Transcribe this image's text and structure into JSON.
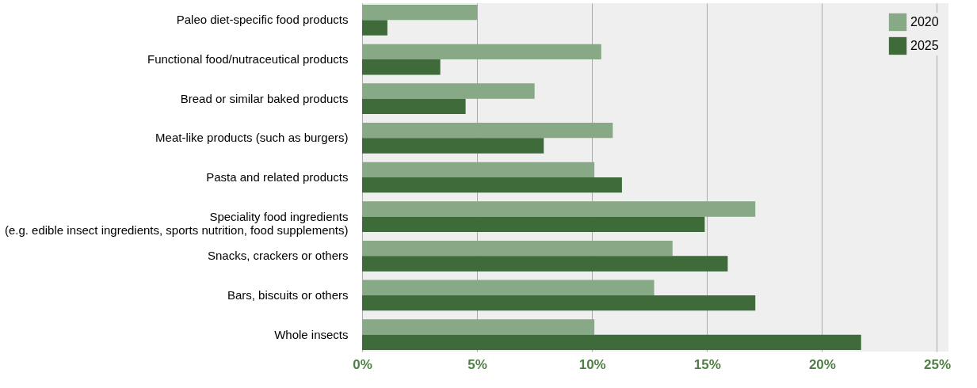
{
  "chart_data": {
    "type": "bar",
    "orientation": "horizontal",
    "categories": [
      "Paleo diet-specific food products",
      "Functional food/nutraceutical products",
      "Bread or similar baked products",
      "Meat-like products (such as burgers)",
      "Pasta and related products",
      "Speciality food ingredients\n(e.g. edible insect ingredients, sports nutrition, food supplements)",
      "Snacks, crackers or others",
      "Bars, biscuits or others",
      "Whole insects"
    ],
    "series": [
      {
        "name": "2020",
        "color": "#87a985",
        "values": [
          5.0,
          10.4,
          7.5,
          10.9,
          10.1,
          17.1,
          13.5,
          12.7,
          10.1
        ]
      },
      {
        "name": "2025",
        "color": "#3f6b3b",
        "values": [
          1.1,
          3.4,
          4.5,
          7.9,
          11.3,
          14.9,
          15.9,
          17.1,
          21.7
        ]
      }
    ],
    "xlim": [
      0,
      25.5
    ],
    "xticks": [
      {
        "value": 0,
        "label": "0%"
      },
      {
        "value": 5,
        "label": "5%"
      },
      {
        "value": 10,
        "label": "10%"
      },
      {
        "value": 15,
        "label": "15%"
      },
      {
        "value": 20,
        "label": "20%"
      },
      {
        "value": 25,
        "label": "25%"
      }
    ],
    "grid": "x",
    "legend": "top right"
  }
}
